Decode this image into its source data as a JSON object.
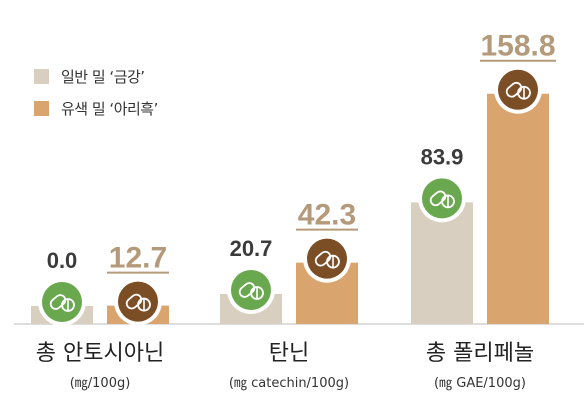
{
  "legend": {
    "items": [
      {
        "label": "일반 밀 ‘금강’",
        "color": "#d9cfc1"
      },
      {
        "label": "유색 밀 ‘아리흑’",
        "color": "#d9a46e"
      }
    ]
  },
  "colors": {
    "general": "#d9cfc1",
    "colored": "#d9a46e",
    "highlight_text": "#b49a7a",
    "plain_text": "#3b3b3b",
    "icon_green": "#6aa84f",
    "icon_brown": "#7b4e26",
    "baseline": "#bbbbbb"
  },
  "chart_data": {
    "type": "bar",
    "categories": [
      {
        "name": "총 안토시아닌",
        "unit": "(㎎/100g)"
      },
      {
        "name": "탄닌",
        "unit": "(㎎ catechin/100g)"
      },
      {
        "name": "총 폴리페놀",
        "unit": "(㎎ GAE/100g)"
      }
    ],
    "series": [
      {
        "name": "일반 밀 ‘금강’",
        "values": [
          0.0,
          20.7,
          83.9
        ]
      },
      {
        "name": "유색 밀 ‘아리흑’",
        "values": [
          12.7,
          42.3,
          158.8
        ]
      }
    ],
    "value_labels": [
      [
        "0.0",
        "12.7"
      ],
      [
        "20.7",
        "42.3"
      ],
      [
        "83.9",
        "158.8"
      ]
    ],
    "icons": [
      "pill-icon-green",
      "pill-icon-brown"
    ],
    "grid": false,
    "legend_position": "top-left"
  }
}
